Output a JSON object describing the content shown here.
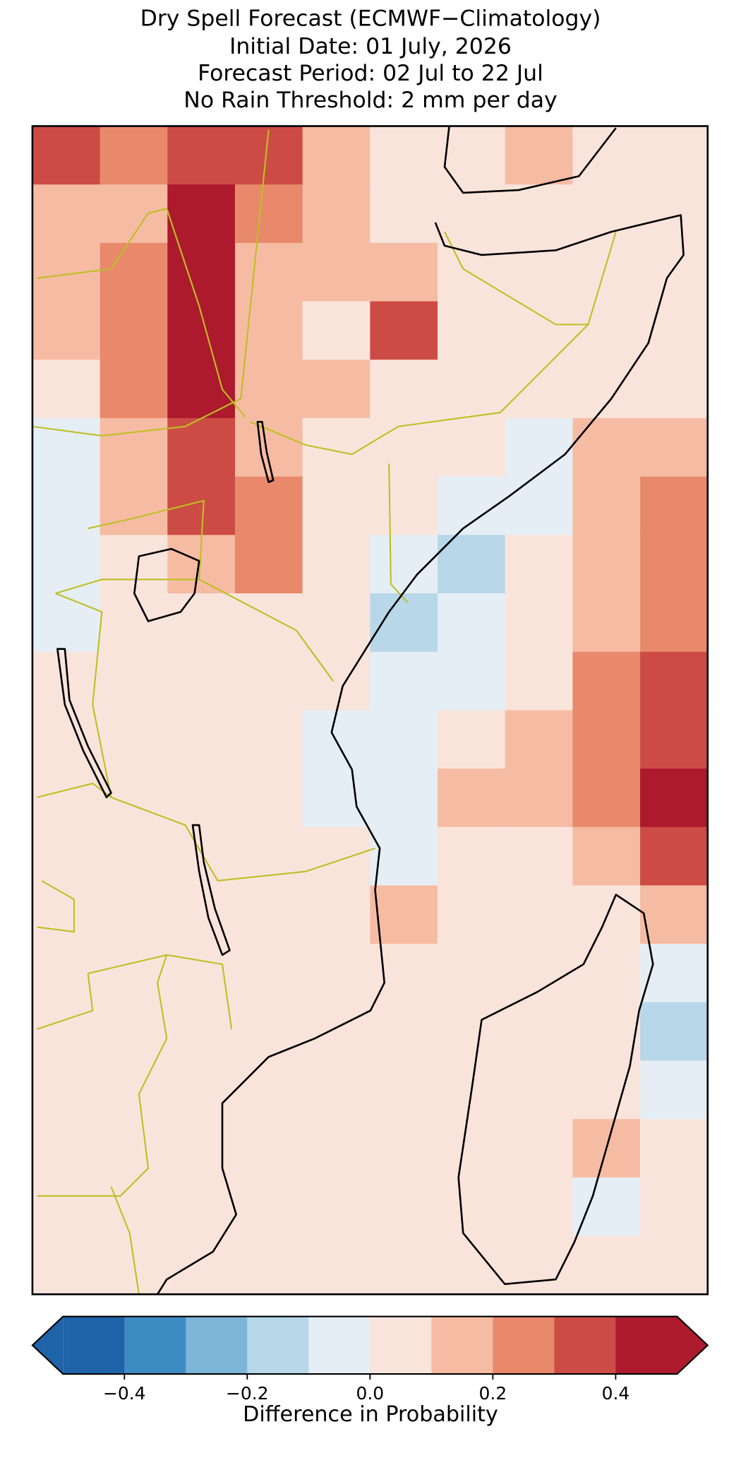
{
  "chart_data": {
    "type": "heatmap",
    "title": [
      "Dry Spell Forecast (ECMWF−Climatology)",
      "Initial Date: 01 July, 2026",
      "Forecast Period: 02 Jul to 22 Jul",
      "No Rain Threshold: 2 mm per day"
    ],
    "field": [
      [
        0.3,
        0.2,
        0.35,
        0.3,
        0.15,
        0.05,
        0.05,
        0.1,
        0.05,
        0.05
      ],
      [
        0.15,
        0.15,
        0.4,
        0.2,
        0.1,
        0.05,
        0.05,
        0.05,
        0.05,
        0.05
      ],
      [
        0.1,
        0.2,
        0.45,
        0.15,
        0.1,
        0.15,
        0.05,
        0.05,
        0.05,
        0.05
      ],
      [
        0.1,
        0.2,
        0.45,
        0.1,
        0.05,
        0.3,
        0.05,
        0.05,
        0.05,
        0.05
      ],
      [
        0.05,
        0.2,
        0.4,
        0.15,
        0.1,
        0.05,
        0.05,
        0.05,
        0.05,
        0.05
      ],
      [
        -0.05,
        0.1,
        0.35,
        0.1,
        0.05,
        0.05,
        0.05,
        -0.05,
        0.1,
        0.15
      ],
      [
        -0.05,
        0.1,
        0.3,
        0.25,
        0.05,
        0.05,
        -0.05,
        -0.05,
        0.15,
        0.2
      ],
      [
        -0.05,
        0.05,
        0.1,
        0.2,
        0.05,
        -0.05,
        -0.15,
        0.05,
        0.15,
        0.2
      ],
      [
        -0.05,
        0.05,
        0.05,
        0.05,
        0.05,
        -0.15,
        -0.1,
        0.05,
        0.1,
        0.25
      ],
      [
        0.05,
        0.05,
        0.05,
        0.05,
        0.05,
        -0.1,
        -0.05,
        0.05,
        0.2,
        0.3
      ],
      [
        0.05,
        0.05,
        0.05,
        0.05,
        -0.05,
        -0.05,
        0.05,
        0.15,
        0.25,
        0.35
      ],
      [
        0.05,
        0.05,
        0.05,
        0.05,
        -0.05,
        -0.05,
        0.1,
        0.15,
        0.2,
        0.4
      ],
      [
        0.05,
        0.05,
        0.05,
        0.05,
        0.05,
        -0.05,
        0.05,
        0.05,
        0.15,
        0.35
      ],
      [
        0.05,
        0.05,
        0.05,
        0.05,
        0.05,
        0.1,
        0.05,
        0.05,
        0.05,
        0.1
      ],
      [
        0.05,
        0.05,
        0.05,
        0.05,
        0.05,
        0.05,
        0.05,
        0.05,
        0.05,
        -0.05
      ],
      [
        0.05,
        0.05,
        0.05,
        0.05,
        0.05,
        0.05,
        0.05,
        0.05,
        0.05,
        -0.15
      ],
      [
        0.05,
        0.05,
        0.05,
        0.05,
        0.05,
        0.05,
        0.05,
        0.05,
        0.05,
        -0.05
      ],
      [
        0.05,
        0.05,
        0.05,
        0.05,
        0.05,
        0.05,
        0.05,
        0.05,
        0.1,
        0.05
      ],
      [
        0.05,
        0.05,
        0.05,
        0.05,
        0.05,
        0.05,
        0.05,
        0.05,
        -0.05,
        0.05
      ],
      [
        0.05,
        0.05,
        0.05,
        0.05,
        0.05,
        0.05,
        0.05,
        0.05,
        0.05,
        0.05
      ]
    ],
    "colors": [
      "#1f63a8",
      "#3d8bc3",
      "#7db5d8",
      "#b8d7e9",
      "#e5eef4",
      "#f9e4dc",
      "#f6bca3",
      "#e8896c",
      "#cc4c45",
      "#ad1a2d"
    ],
    "clim": [
      -0.5,
      0.5
    ],
    "cticks": [
      {
        "value": -0.4,
        "label": "−0.4"
      },
      {
        "value": -0.2,
        "label": "−0.2"
      },
      {
        "value": 0,
        "label": "0.0"
      },
      0.2,
      0.4
    ],
    "colorbar_label": "Difference in Probability"
  }
}
